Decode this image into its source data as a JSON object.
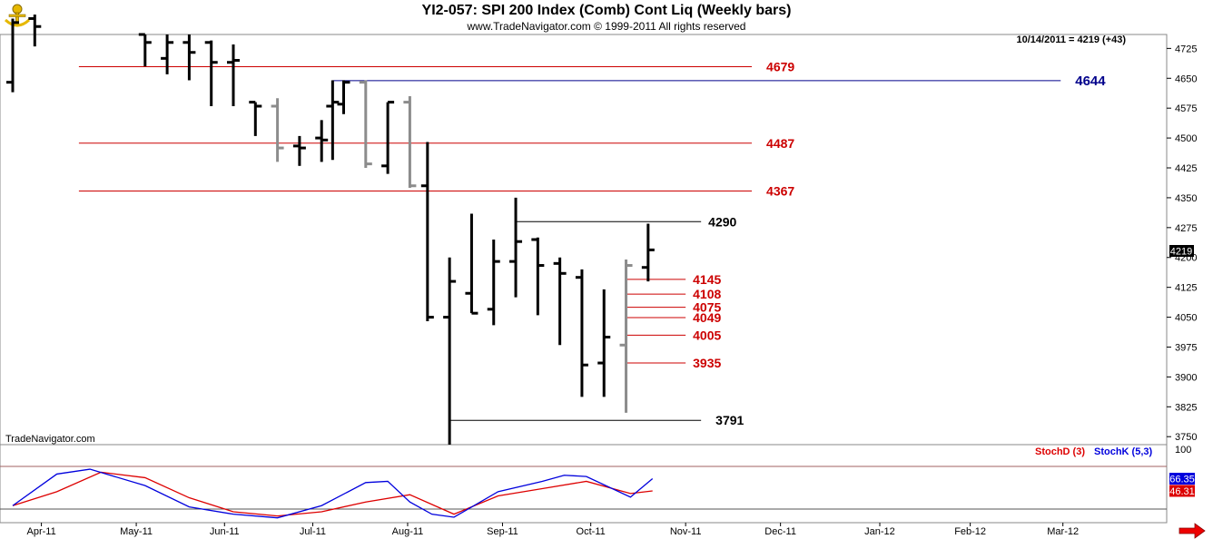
{
  "header": {
    "title": "YI2-057:  SPI 200 Index (Comb) Cont Liq  (Weekly bars)",
    "copyright": "www.TradeNavigator.com © 1999-2011 All rights reserved",
    "last_quote": "10/14/2011 = 4219 (+43)",
    "watermark": "TradeNavigator.com",
    "last_price_tag": "4219"
  },
  "colors": {
    "bar_black": "#000000",
    "bar_gray": "#8c8c8c",
    "resistance_red": "#cc0000",
    "level_blue": "#00008b",
    "stoch_d": "#dd0000",
    "stoch_k": "#0000dd",
    "arrow": "#ee0000"
  },
  "chart_data": [
    {
      "type": "ohlc",
      "ylim": [
        3730,
        4760
      ],
      "yticks": [
        3750,
        3825,
        3900,
        3975,
        4050,
        4125,
        4200,
        4275,
        4350,
        4425,
        4500,
        4575,
        4650,
        4725
      ],
      "xticks": [
        "Apr-11",
        "May-11",
        "Jun-11",
        "Jul-11",
        "Aug-11",
        "Sep-11",
        "Oct-11",
        "Nov-11",
        "Dec-11",
        "Jan-12",
        "Feb-12",
        "Mar-12"
      ],
      "xtick_weeks": [
        1.3,
        5.6,
        9.6,
        13.6,
        17.9,
        22.2,
        26.2,
        30.5,
        34.8,
        39.3,
        43.4,
        47.6
      ],
      "bars": [
        {
          "w": 0,
          "o": 4640,
          "h": 4800,
          "l": 4615,
          "c": 4790,
          "gray": false
        },
        {
          "w": 1,
          "o": 4800,
          "h": 4810,
          "l": 4730,
          "c": 4780,
          "gray": false
        },
        {
          "w": 6,
          "o": 4760,
          "h": 4760,
          "l": 4680,
          "c": 4740,
          "gray": false
        },
        {
          "w": 7,
          "o": 4700,
          "h": 4760,
          "l": 4660,
          "c": 4740,
          "gray": false
        },
        {
          "w": 8,
          "o": 4740,
          "h": 4760,
          "l": 4645,
          "c": 4715,
          "gray": false
        },
        {
          "w": 9,
          "o": 4740,
          "h": 4745,
          "l": 4580,
          "c": 4690,
          "gray": false
        },
        {
          "w": 10,
          "o": 4690,
          "h": 4735,
          "l": 4580,
          "c": 4695,
          "gray": false
        },
        {
          "w": 11,
          "o": 4590,
          "h": 4590,
          "l": 4505,
          "c": 4580,
          "gray": false
        },
        {
          "w": 12,
          "o": 4580,
          "h": 4600,
          "l": 4440,
          "c": 4475,
          "gray": true
        },
        {
          "w": 13,
          "o": 4480,
          "h": 4505,
          "l": 4430,
          "c": 4475,
          "gray": false
        },
        {
          "w": 14,
          "o": 4500,
          "h": 4545,
          "l": 4440,
          "c": 4495,
          "gray": false
        },
        {
          "w": 14.5,
          "o": 4580,
          "h": 4645,
          "l": 4445,
          "c": 4590,
          "gray": false
        },
        {
          "w": 15,
          "o": 4585,
          "h": 4645,
          "l": 4560,
          "c": 4640,
          "gray": false
        },
        {
          "w": 16,
          "o": 4640,
          "h": 4645,
          "l": 4425,
          "c": 4435,
          "gray": true
        },
        {
          "w": 17,
          "o": 4430,
          "h": 4590,
          "l": 4410,
          "c": 4590,
          "gray": false
        },
        {
          "w": 18,
          "o": 4590,
          "h": 4605,
          "l": 4375,
          "c": 4380,
          "gray": true
        },
        {
          "w": 18.8,
          "o": 4380,
          "h": 4490,
          "l": 4040,
          "c": 4050,
          "gray": false
        },
        {
          "w": 19.8,
          "o": 4050,
          "h": 4200,
          "l": 3730,
          "c": 4140,
          "gray": false
        },
        {
          "w": 20.8,
          "o": 4110,
          "h": 4310,
          "l": 4060,
          "c": 4060,
          "gray": false
        },
        {
          "w": 21.8,
          "o": 4070,
          "h": 4245,
          "l": 4030,
          "c": 4190,
          "gray": false
        },
        {
          "w": 22.8,
          "o": 4190,
          "h": 4350,
          "l": 4100,
          "c": 4240,
          "gray": false
        },
        {
          "w": 23.8,
          "o": 4245,
          "h": 4250,
          "l": 4055,
          "c": 4180,
          "gray": false
        },
        {
          "w": 24.8,
          "o": 4185,
          "h": 4200,
          "l": 3980,
          "c": 4160,
          "gray": false
        },
        {
          "w": 25.8,
          "o": 4150,
          "h": 4170,
          "l": 3850,
          "c": 3930,
          "gray": false
        },
        {
          "w": 26.8,
          "o": 3935,
          "h": 4120,
          "l": 3850,
          "c": 4000,
          "gray": false
        },
        {
          "w": 27.8,
          "o": 3980,
          "h": 4195,
          "l": 3810,
          "c": 4180,
          "gray": true
        },
        {
          "w": 28.8,
          "o": 4175,
          "h": 4285,
          "l": 4140,
          "c": 4219,
          "gray": false
        }
      ],
      "lines": [
        {
          "value": 4679,
          "label": "4679",
          "from": 3,
          "to": 33.5,
          "color": "red"
        },
        {
          "value": 4644,
          "label": "4644",
          "from": 14.5,
          "to": 47.5,
          "color": "blue"
        },
        {
          "value": 4487,
          "label": "4487",
          "from": 3,
          "to": 33.5,
          "color": "red"
        },
        {
          "value": 4367,
          "label": "4367",
          "from": 3,
          "to": 33.5,
          "color": "red"
        },
        {
          "value": 4290,
          "label": "4290",
          "from": 22.8,
          "to": 31.2,
          "color": "black"
        },
        {
          "value": 4145,
          "label": "4145",
          "from": 27.8,
          "to": 30.5,
          "color": "red"
        },
        {
          "value": 4108,
          "label": "4108",
          "from": 27.8,
          "to": 30.5,
          "color": "red"
        },
        {
          "value": 4075,
          "label": "4075",
          "from": 27.8,
          "to": 30.5,
          "color": "red"
        },
        {
          "value": 4049,
          "label": "4049",
          "from": 27.8,
          "to": 30.5,
          "color": "red"
        },
        {
          "value": 4005,
          "label": "4005",
          "from": 27.8,
          "to": 30.5,
          "color": "red"
        },
        {
          "value": 3935,
          "label": "3935",
          "from": 27.8,
          "to": 30.5,
          "color": "red"
        },
        {
          "value": 3791,
          "label": "3791",
          "from": 19.8,
          "to": 31.2,
          "color": "black"
        }
      ]
    },
    {
      "type": "line",
      "ylim": [
        0,
        100
      ],
      "yticks": [
        100
      ],
      "series": [
        {
          "name": "StochD (3)",
          "value_label": "46.31",
          "points": [
            [
              0,
              22
            ],
            [
              2,
              45
            ],
            [
              4,
              77
            ],
            [
              6,
              68
            ],
            [
              8,
              35
            ],
            [
              10,
              12
            ],
            [
              12,
              5
            ],
            [
              14,
              12
            ],
            [
              16,
              28
            ],
            [
              18,
              40
            ],
            [
              20,
              8
            ],
            [
              22,
              38
            ],
            [
              24,
              50
            ],
            [
              26,
              62
            ],
            [
              28,
              42
            ],
            [
              29,
              46.31
            ]
          ]
        },
        {
          "name": "StochK (5,3)",
          "value_label": "66.35",
          "points": [
            [
              0,
              22
            ],
            [
              2,
              74
            ],
            [
              3.5,
              82
            ],
            [
              6,
              55
            ],
            [
              8,
              20
            ],
            [
              10,
              8
            ],
            [
              12,
              2
            ],
            [
              14,
              22
            ],
            [
              16,
              60
            ],
            [
              17,
              62
            ],
            [
              18,
              28
            ],
            [
              19,
              8
            ],
            [
              20,
              3
            ],
            [
              22,
              45
            ],
            [
              24,
              62
            ],
            [
              25,
              72
            ],
            [
              26,
              70
            ],
            [
              28,
              36
            ],
            [
              29,
              66.35
            ]
          ]
        }
      ]
    }
  ]
}
